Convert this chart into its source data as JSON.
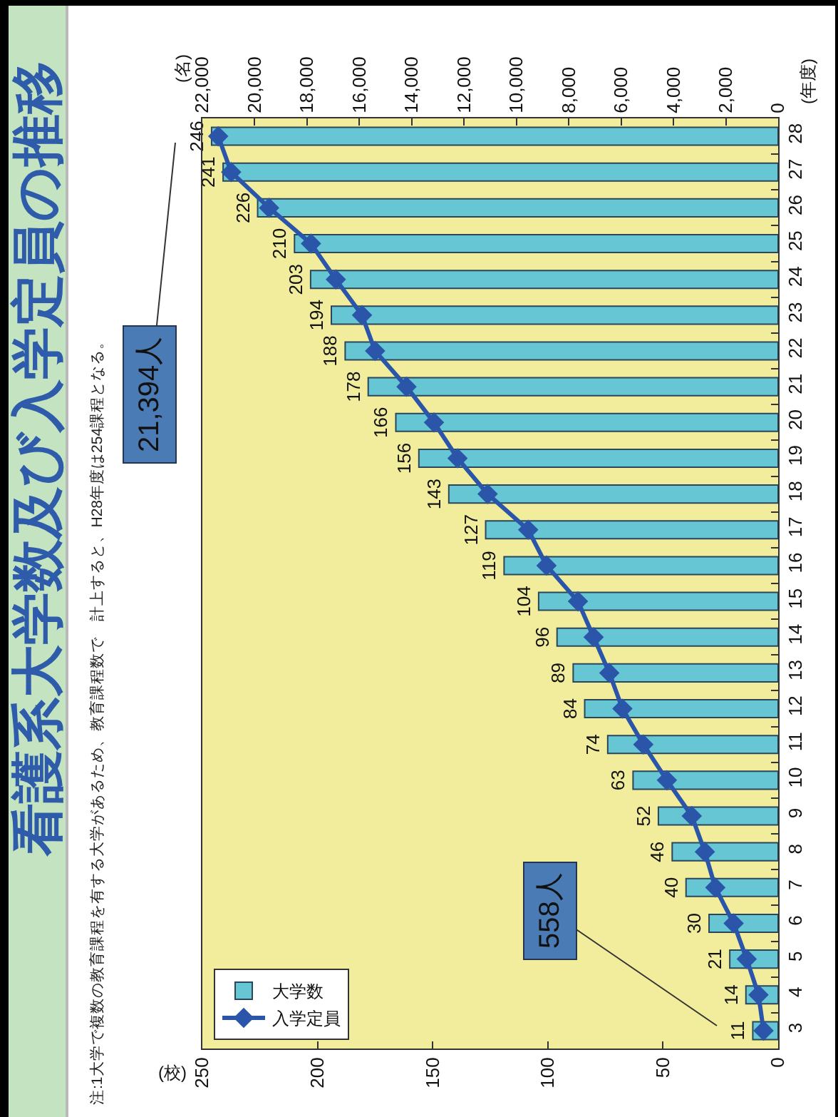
{
  "chart_data": {
    "type": "bar",
    "orientation": "horizontal",
    "title": "看護系大学数及び入学定員の推移",
    "xlabel": "(校)",
    "x2label": "(名)",
    "ylabel": "(年度)",
    "categories": [
      "28",
      "27",
      "26",
      "25",
      "24",
      "23",
      "22",
      "21",
      "20",
      "19",
      "18",
      "17",
      "16",
      "15",
      "14",
      "13",
      "12",
      "11",
      "10",
      "9",
      "8",
      "7",
      "6",
      "5",
      "4",
      "3"
    ],
    "series": [
      {
        "name": "大学数",
        "color": "#66c6d4",
        "values": [
          246,
          241,
          226,
          210,
          203,
          194,
          188,
          178,
          166,
          156,
          143,
          127,
          119,
          104,
          96,
          89,
          84,
          74,
          63,
          52,
          46,
          40,
          30,
          21,
          14,
          11
        ],
        "value_labels": [
          "246",
          "241",
          "226",
          "210",
          "203",
          "194",
          "188",
          "178",
          "166",
          "156",
          "143",
          "127",
          "119",
          "104",
          "96",
          "89",
          "84",
          "74",
          "63",
          "52",
          "46",
          "40",
          "30",
          "21",
          "14",
          "11"
        ]
      },
      {
        "name": "入学定員",
        "type": "line",
        "axis": "x2",
        "color": "#2a55a8",
        "marker": "diamond",
        "values": [
          21394,
          20900,
          19450,
          17850,
          16900,
          15900,
          15400,
          14200,
          13150,
          12250,
          11100,
          9550,
          8850,
          7650,
          7050,
          6450,
          5950,
          5150,
          4250,
          3300,
          2800,
          2400,
          1700,
          1200,
          750,
          558
        ]
      }
    ],
    "xlim": [
      250,
      0
    ],
    "xticks": [
      0,
      50,
      100,
      150,
      200,
      250
    ],
    "x2lim": [
      22000,
      0
    ],
    "x2ticks": [
      0,
      {
        "value": 2000,
        "label": "2,000"
      },
      {
        "value": 4000,
        "label": "4,000"
      },
      {
        "value": 6000,
        "label": "6,000"
      },
      {
        "value": 8000,
        "label": "8,000"
      },
      {
        "value": 10000,
        "label": "10,000"
      },
      {
        "value": 12000,
        "label": "12,000"
      },
      {
        "value": 14000,
        "label": "14,000"
      },
      {
        "value": 16000,
        "label": "16,000"
      },
      {
        "value": 18000,
        "label": "18,000"
      },
      {
        "value": 20000,
        "label": "20,000"
      },
      {
        "value": 22000,
        "label": "22,000"
      }
    ],
    "grid": false,
    "legend": "bottom left",
    "annotations": [
      "注:1大学で複数の教育課程を有する大学があるため、教育課程数で　計上すると、H28年度は254課程となる。",
      "21,394人",
      "558人"
    ]
  }
}
